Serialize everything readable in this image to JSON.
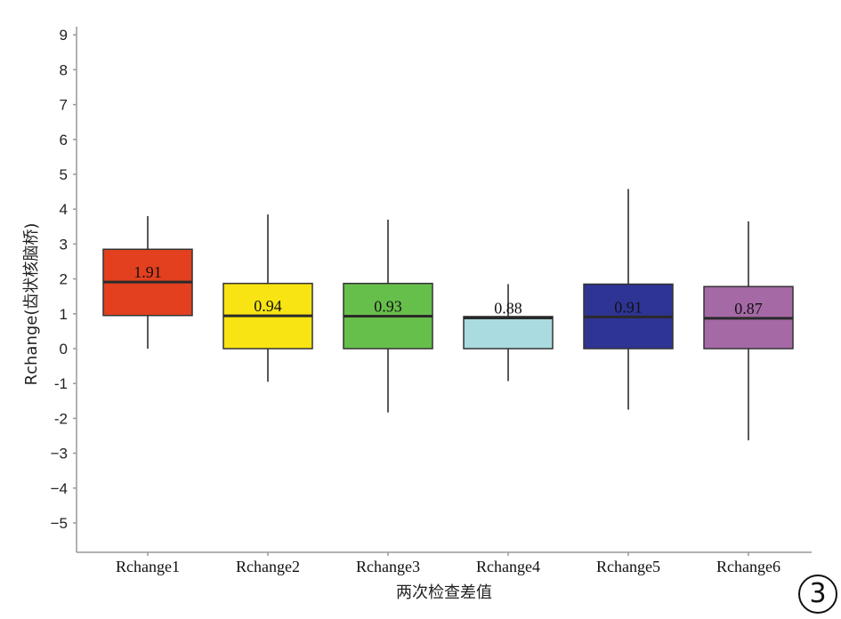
{
  "chart_data": {
    "type": "boxplot",
    "xlabel": "两次检查差值",
    "ylabel": "Rchange(齿状核脑桥)",
    "ylim": [
      -6,
      9
    ],
    "yticks": [
      9,
      8,
      7,
      6,
      5,
      4,
      3,
      2,
      1,
      0,
      -1,
      -2,
      -3,
      -4,
      -5
    ],
    "ytick_labels": [
      "9",
      "8",
      "7",
      "6",
      "5",
      "4",
      "3",
      "2",
      "1",
      "0",
      "-1",
      "-2",
      "−3",
      "−4",
      "−5"
    ],
    "grid": false,
    "categories": [
      "Rchange1",
      "Rchange2",
      "Rchange3",
      "Rchange4",
      "Rchange5",
      "Rchange6"
    ],
    "boxes": [
      {
        "name": "Rchange1",
        "min": 0.0,
        "q1": 0.95,
        "median": 1.91,
        "q3": 2.85,
        "max": 3.8,
        "label": "1.91",
        "color": "#e2401f"
      },
      {
        "name": "Rchange2",
        "min": -0.95,
        "q1": 0.0,
        "median": 0.94,
        "q3": 1.87,
        "max": 3.85,
        "label": "0.94",
        "color": "#f7e412"
      },
      {
        "name": "Rchange3",
        "min": -1.83,
        "q1": 0.0,
        "median": 0.93,
        "q3": 1.87,
        "max": 3.7,
        "label": "0.93",
        "color": "#67bf4b"
      },
      {
        "name": "Rchange4",
        "min": -0.93,
        "q1": 0.0,
        "median": 0.88,
        "q3": 0.92,
        "max": 1.85,
        "label": "0.88",
        "color": "#a9dbe0"
      },
      {
        "name": "Rchange5",
        "min": -1.75,
        "q1": 0.0,
        "median": 0.91,
        "q3": 1.85,
        "max": 4.58,
        "label": "0.91",
        "color": "#2e3494"
      },
      {
        "name": "Rchange6",
        "min": -2.63,
        "q1": 0.0,
        "median": 0.87,
        "q3": 1.78,
        "max": 3.65,
        "label": "0.87",
        "color": "#a569a6"
      }
    ]
  },
  "panel_label": "3"
}
